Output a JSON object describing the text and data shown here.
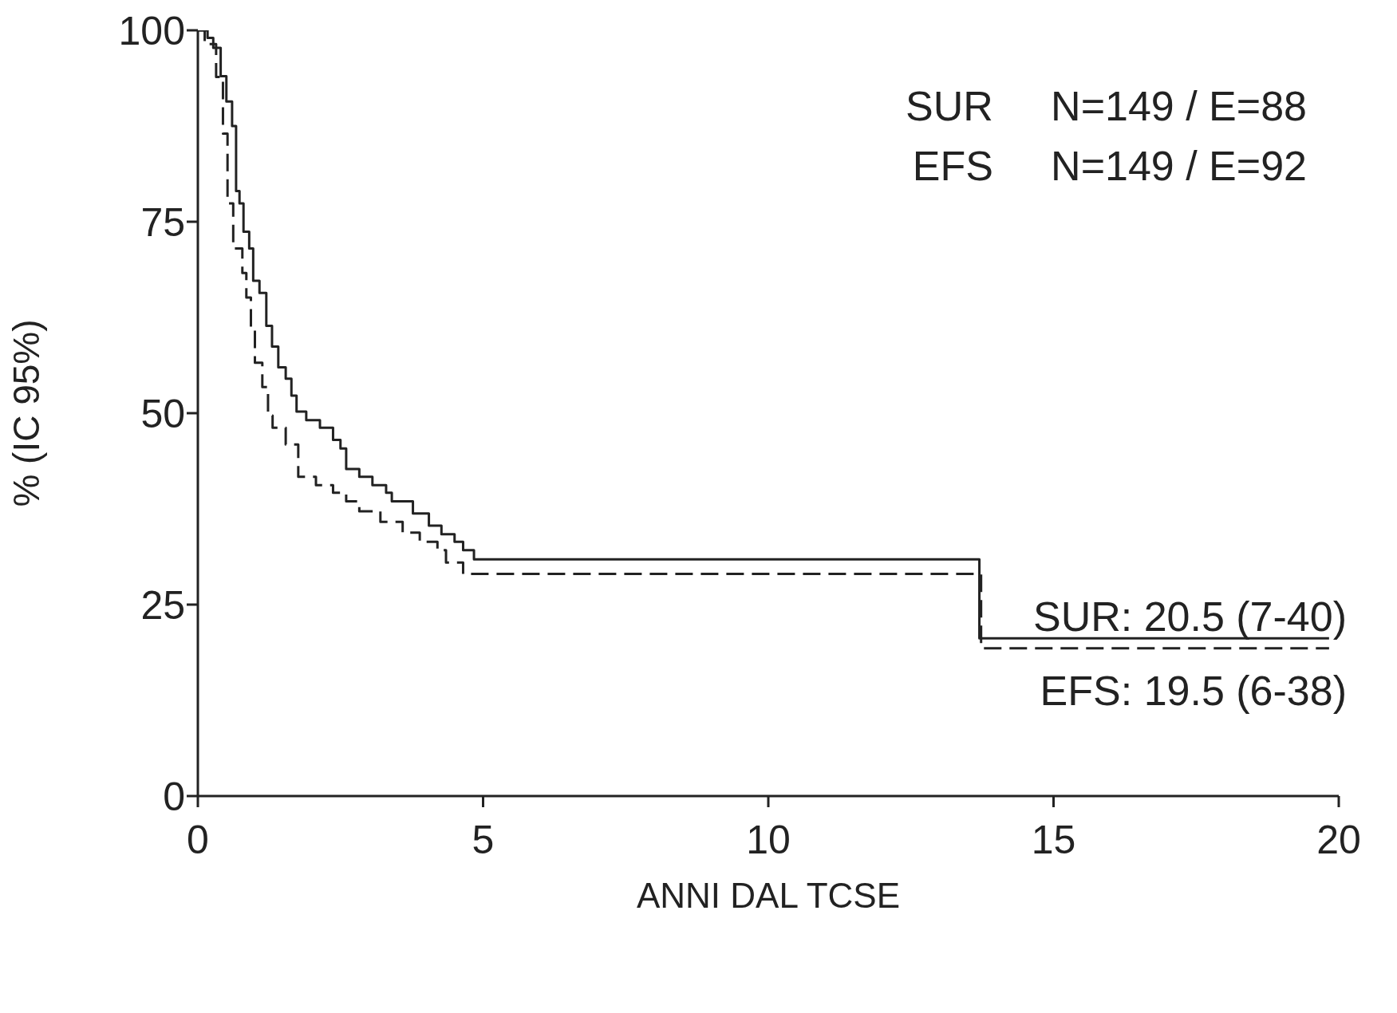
{
  "chart_data": {
    "type": "step",
    "xlabel": "ANNI DAL TCSE",
    "ylabel": "% (IC 95%)",
    "xlim": [
      0,
      20
    ],
    "xticks": [
      0,
      5,
      10,
      15,
      20
    ],
    "ylim": [
      0,
      100
    ],
    "yticks": [
      0,
      25,
      50,
      75,
      100
    ],
    "marker": "none",
    "series": [
      {
        "color": "#222222",
        "line_style": "solid",
        "x": [
          0,
          0.17,
          0.27,
          0.4,
          0.5,
          0.6,
          0.67,
          0.73,
          0.8,
          0.9,
          0.97,
          1.08,
          1.2,
          1.3,
          1.41,
          1.54,
          1.64,
          1.73,
          1.9,
          2.14,
          2.37,
          2.5,
          2.6,
          2.83,
          3.06,
          3.3,
          3.4,
          3.77,
          4.05,
          4.27,
          4.5,
          4.65,
          4.84,
          13.7,
          19.83
        ],
        "values": [
          100,
          99,
          97.7,
          94,
          90.7,
          87.5,
          79,
          77.4,
          73.7,
          71.5,
          67.3,
          65.7,
          61.4,
          58.7,
          56,
          54.5,
          52.3,
          50.2,
          49.1,
          48.1,
          46.5,
          45.4,
          42.7,
          41.7,
          40.6,
          39.6,
          38.5,
          36.9,
          35.3,
          34.2,
          33.2,
          32.1,
          30.9,
          20.6,
          20.6
        ]
      },
      {
        "color": "#222222",
        "line_style": "dashed",
        "x": [
          0,
          0.12,
          0.32,
          0.44,
          0.52,
          0.62,
          0.78,
          0.85,
          0.93,
          1.0,
          1.13,
          1.23,
          1.31,
          1.54,
          1.76,
          2.07,
          2.37,
          2.6,
          2.83,
          3.2,
          3.59,
          3.89,
          4.2,
          4.35,
          4.65,
          13.73,
          19.83
        ],
        "values": [
          100,
          98.2,
          93.9,
          86.5,
          77.4,
          71.5,
          68.3,
          65.1,
          60.9,
          56.6,
          53.4,
          49.7,
          48.1,
          45.9,
          41.7,
          40.6,
          39.6,
          38.5,
          37.2,
          35.8,
          34.4,
          33.2,
          32.1,
          30.5,
          29,
          19.3,
          19.3
        ]
      }
    ],
    "annotations": [
      "SUR     N=149 / E=88",
      "EFS     N=149 / E=92",
      "SUR: 20.5 (7-40)",
      "EFS: 19.5 (6-38)"
    ]
  }
}
